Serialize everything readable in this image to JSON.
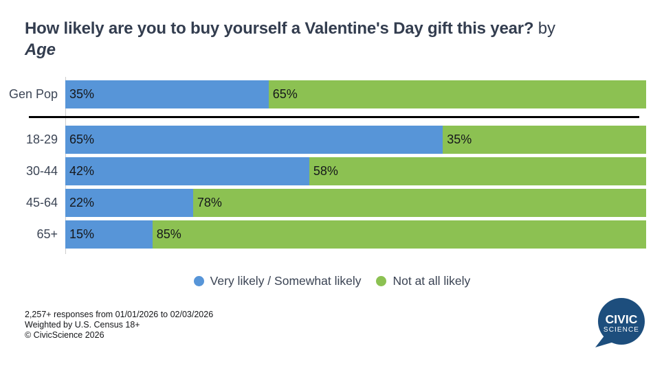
{
  "title": {
    "question": "How likely are you to buy yourself a Valentine's Day gift this year?",
    "by": " by",
    "group": "Age"
  },
  "chart_data": {
    "type": "bar",
    "stacked": true,
    "orientation": "horizontal",
    "title": "How likely are you to buy yourself a Valentine's Day gift this year? by Age",
    "categories": [
      "Gen Pop",
      "18-29",
      "30-44",
      "45-64",
      "65+"
    ],
    "series": [
      {
        "name": "Very likely / Somewhat likely",
        "color": "#5795d8",
        "values": [
          35,
          65,
          42,
          22,
          15
        ]
      },
      {
        "name": "Not at all likely",
        "color": "#8cc152",
        "values": [
          65,
          35,
          58,
          78,
          85
        ]
      }
    ],
    "value_suffix": "%",
    "xlim": [
      0,
      100
    ],
    "grid": false,
    "legend_position": "bottom",
    "separator_after_category": "Gen Pop",
    "value_labels": "inside-start-of-each-segment"
  },
  "legend": {
    "items": [
      {
        "label": "Very likely / Somewhat likely",
        "color": "#5795d8"
      },
      {
        "label": "Not at all likely",
        "color": "#8cc152"
      }
    ]
  },
  "footer": {
    "lines": [
      "2,257+ responses from 01/01/2026 to 02/03/2026",
      "Weighted by U.S. Census 18+",
      "© CivicScience 2026"
    ]
  },
  "logo": {
    "line1": "CIVIC",
    "line2": "SCIENCE",
    "color": "#1d4e7d",
    "text_color": "#ffffff"
  }
}
